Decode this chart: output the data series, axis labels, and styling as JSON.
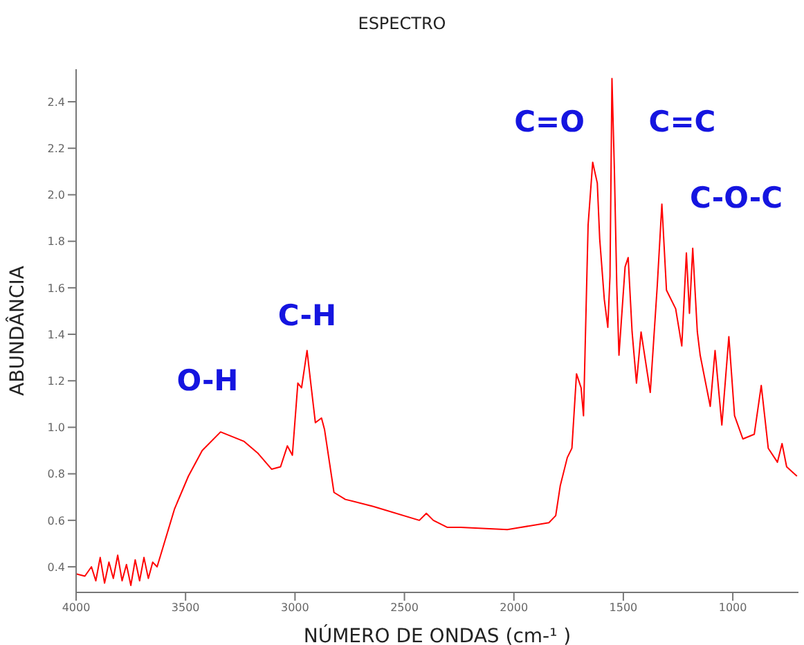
{
  "chart_data": {
    "type": "line",
    "title": "ESPECTRO",
    "xlabel": "NÚMERO DE ONDAS (cm-¹ )",
    "ylabel": "ABUNDÂNCIA",
    "xlim": [
      4000,
      700
    ],
    "xticks": [
      4000,
      3500,
      3000,
      2500,
      2000,
      1500,
      1000
    ],
    "ylim": [
      0.29,
      2.54
    ],
    "yticks": [
      {
        "value": 0.4,
        "label": "0.4"
      },
      {
        "value": 0.6,
        "label": "0.6"
      },
      {
        "value": 0.8,
        "label": "0.8"
      },
      {
        "value": 1.0,
        "label": "1.0"
      },
      {
        "value": 1.2,
        "label": "1.2"
      },
      {
        "value": 1.4,
        "label": "1.4"
      },
      {
        "value": 1.6,
        "label": "1.6"
      },
      {
        "value": 1.8,
        "label": "1.8"
      },
      {
        "value": 2.0,
        "label": "2.0"
      },
      {
        "value": 2.2,
        "label": "2.2"
      },
      {
        "value": 2.4,
        "label": "2.4"
      }
    ],
    "grid": false,
    "legend": false,
    "series": [
      {
        "color": "#ff0000",
        "x": [
          4000,
          3960,
          3930,
          3910,
          3890,
          3870,
          3850,
          3830,
          3810,
          3790,
          3770,
          3750,
          3730,
          3710,
          3690,
          3670,
          3650,
          3630,
          3614,
          3550,
          3487,
          3424,
          3340,
          3234,
          3171,
          3107,
          3066,
          3035,
          3012,
          2987,
          2970,
          2945,
          2928,
          2907,
          2879,
          2865,
          2822,
          2770,
          2643,
          2432,
          2400,
          2368,
          2305,
          2242,
          2030,
          1840,
          1809,
          1788,
          1756,
          1735,
          1714,
          1693,
          1682,
          1661,
          1640,
          1619,
          1608,
          1587,
          1571,
          1561,
          1552,
          1541,
          1530,
          1520,
          1492,
          1478,
          1460,
          1440,
          1419,
          1377,
          1345,
          1324,
          1303,
          1261,
          1233,
          1212,
          1198,
          1183,
          1162,
          1149,
          1103,
          1081,
          1050,
          1018,
          992,
          954,
          902,
          870,
          838,
          796,
          775,
          754,
          707
        ],
        "values": [
          0.37,
          0.36,
          0.4,
          0.34,
          0.44,
          0.33,
          0.42,
          0.35,
          0.45,
          0.34,
          0.41,
          0.32,
          0.43,
          0.34,
          0.44,
          0.35,
          0.42,
          0.4,
          0.45,
          0.65,
          0.79,
          0.9,
          0.98,
          0.94,
          0.89,
          0.82,
          0.83,
          0.92,
          0.88,
          1.19,
          1.17,
          1.33,
          1.19,
          1.02,
          1.04,
          0.99,
          0.72,
          0.69,
          0.66,
          0.6,
          0.63,
          0.6,
          0.57,
          0.57,
          0.56,
          0.59,
          0.62,
          0.75,
          0.87,
          0.91,
          1.23,
          1.17,
          1.05,
          1.87,
          2.14,
          2.05,
          1.81,
          1.55,
          1.43,
          1.65,
          2.5,
          2.11,
          1.61,
          1.31,
          1.69,
          1.73,
          1.41,
          1.19,
          1.41,
          1.15,
          1.61,
          1.96,
          1.59,
          1.51,
          1.35,
          1.75,
          1.49,
          1.77,
          1.41,
          1.31,
          1.09,
          1.33,
          1.01,
          1.39,
          1.05,
          0.95,
          0.97,
          1.18,
          0.91,
          0.85,
          0.93,
          0.83,
          0.79
        ]
      }
    ],
    "annotations": [
      "O-H",
      "C-H",
      "C=O",
      "C=C",
      "C-O-C"
    ]
  }
}
